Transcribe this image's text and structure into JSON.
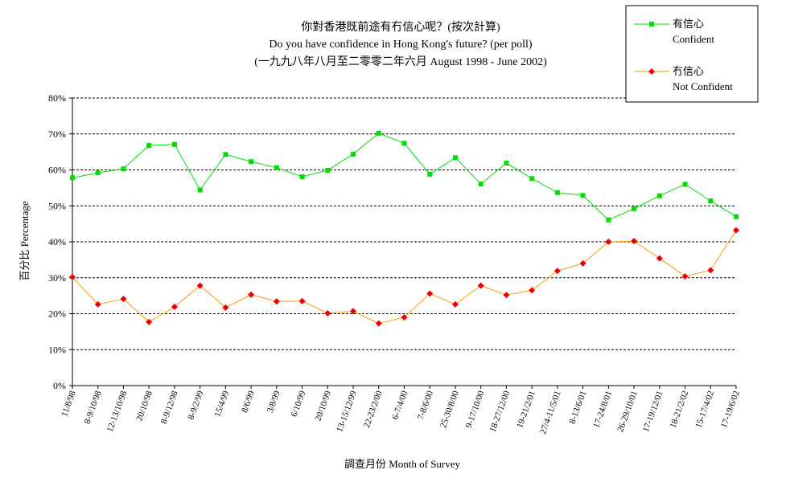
{
  "chart_data": {
    "type": "line",
    "title": [
      "你對香港既前途有冇信心呢？(按次計算)",
      "Do you have confidence in Hong Kong's future? (per poll)",
      "(一九九八年八月至二零零二年六月 August 1998 - June 2002)"
    ],
    "xlabel": "調查月份 Month of Survey",
    "ylabel": "百分比 Percentage",
    "ylim": [
      0,
      80
    ],
    "ytick_labels": [
      "0%",
      "10%",
      "20%",
      "30%",
      "40%",
      "50%",
      "60%",
      "70%",
      "80%"
    ],
    "grid": "horizontal-dashed",
    "legend_position": "top-right",
    "categories": [
      "11/8/98",
      "8-9/10/98",
      "12-13/10/98",
      "20/10/98",
      "8-9/12/98",
      "8-9/2/99",
      "15/4/99",
      "8/6/99",
      "3/8/99",
      "6/10/99",
      "20/10/99",
      "13-15/12/99",
      "22-23/2/00",
      "6-7/4/00",
      "7-8/6/00",
      "25-30/8/00",
      "9-17/10/00",
      "18-27/12/00",
      "19-21/2/01",
      "27/4-11/5/01",
      "8-13/6/01",
      "17-24/8/01",
      "26-29/10/01",
      "17-19/12/01",
      "18-21/2/02",
      "15-17/4/02",
      "17-19/6/02"
    ],
    "series": [
      {
        "name": "有信心",
        "name_en": "Confident",
        "color": "#00dd00",
        "marker": "square",
        "values": [
          57.8,
          59.2,
          60.3,
          66.8,
          67.1,
          54.4,
          64.3,
          62.3,
          60.6,
          58.1,
          59.9,
          64.4,
          70.2,
          67.4,
          58.8,
          63.4,
          56.1,
          61.9,
          57.6,
          53.7,
          52.9,
          46.1,
          49.2,
          52.8,
          56.0,
          51.4,
          47.0
        ]
      },
      {
        "name": "冇信心",
        "name_en": "Not Confident",
        "color": "#ff9900",
        "marker_color": "#ee0000",
        "marker": "diamond",
        "values": [
          30.2,
          22.6,
          24.1,
          17.7,
          21.9,
          27.8,
          21.7,
          25.3,
          23.4,
          23.5,
          20.1,
          20.7,
          17.3,
          19.0,
          25.6,
          22.6,
          27.8,
          25.2,
          26.5,
          31.9,
          34.0,
          40.0,
          40.2,
          35.4,
          30.4,
          32.1,
          43.2
        ]
      }
    ]
  }
}
